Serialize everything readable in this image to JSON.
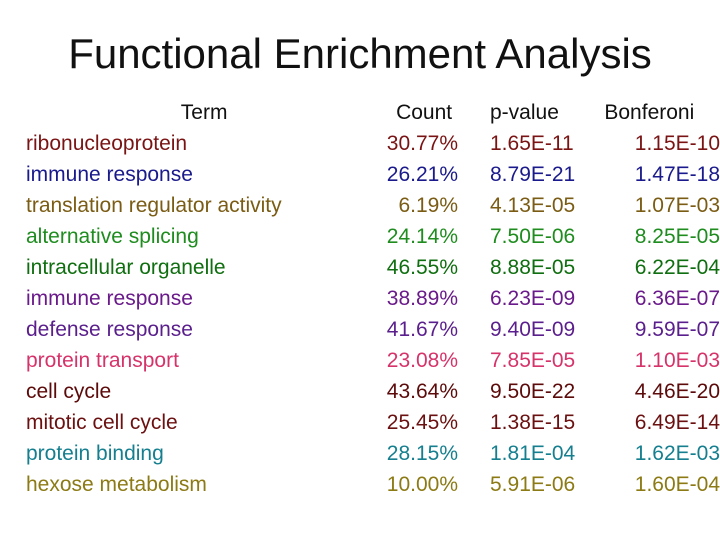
{
  "title": "Functional Enrichment Analysis",
  "headers": {
    "term": "Term",
    "count": "Count",
    "pvalue": "p-value",
    "bonferoni": "Bonferoni"
  },
  "rows": [
    {
      "term": "ribonucleoprotein",
      "count": "30.77%",
      "pvalue": "1.65E-11",
      "bonferoni": "1.15E-10",
      "color": "#7a1414"
    },
    {
      "term": "immune response",
      "count": "26.21%",
      "pvalue": "8.79E-21",
      "bonferoni": "1.47E-18",
      "color": "#1a1a8c"
    },
    {
      "term": "translation regulator activity",
      "count": "6.19%",
      "pvalue": "4.13E-05",
      "bonferoni": "1.07E-03",
      "color": "#7a5c14"
    },
    {
      "term": "alternative splicing",
      "count": "24.14%",
      "pvalue": "7.50E-06",
      "bonferoni": "8.25E-05",
      "color": "#1e8c1e"
    },
    {
      "term": "intracellular organelle",
      "count": "46.55%",
      "pvalue": "8.88E-05",
      "bonferoni": "6.22E-04",
      "color": "#0f6e0f"
    },
    {
      "term": "immune response",
      "count": "38.89%",
      "pvalue": "6.23E-09",
      "bonferoni": "6.36E-07",
      "color": "#6a1a8a"
    },
    {
      "term": "defense response",
      "count": "41.67%",
      "pvalue": "9.40E-09",
      "bonferoni": "9.59E-07",
      "color": "#5a1f8c"
    },
    {
      "term": "protein transport",
      "count": "23.08%",
      "pvalue": "7.85E-05",
      "bonferoni": "1.10E-03",
      "color": "#d6336b"
    },
    {
      "term": "cell cycle",
      "count": "43.64%",
      "pvalue": "9.50E-22",
      "bonferoni": "4.46E-20",
      "color": "#5c0a0a"
    },
    {
      "term": "mitotic cell cycle",
      "count": "25.45%",
      "pvalue": "1.38E-15",
      "bonferoni": "6.49E-14",
      "color": "#6b1010"
    },
    {
      "term": "protein binding",
      "count": "28.15%",
      "pvalue": "1.81E-04",
      "bonferoni": "1.62E-03",
      "color": "#157f8f"
    },
    {
      "term": "hexose metabolism",
      "count": "10.00%",
      "pvalue": "5.91E-06",
      "bonferoni": "1.60E-04",
      "color": "#8c7a14"
    }
  ]
}
